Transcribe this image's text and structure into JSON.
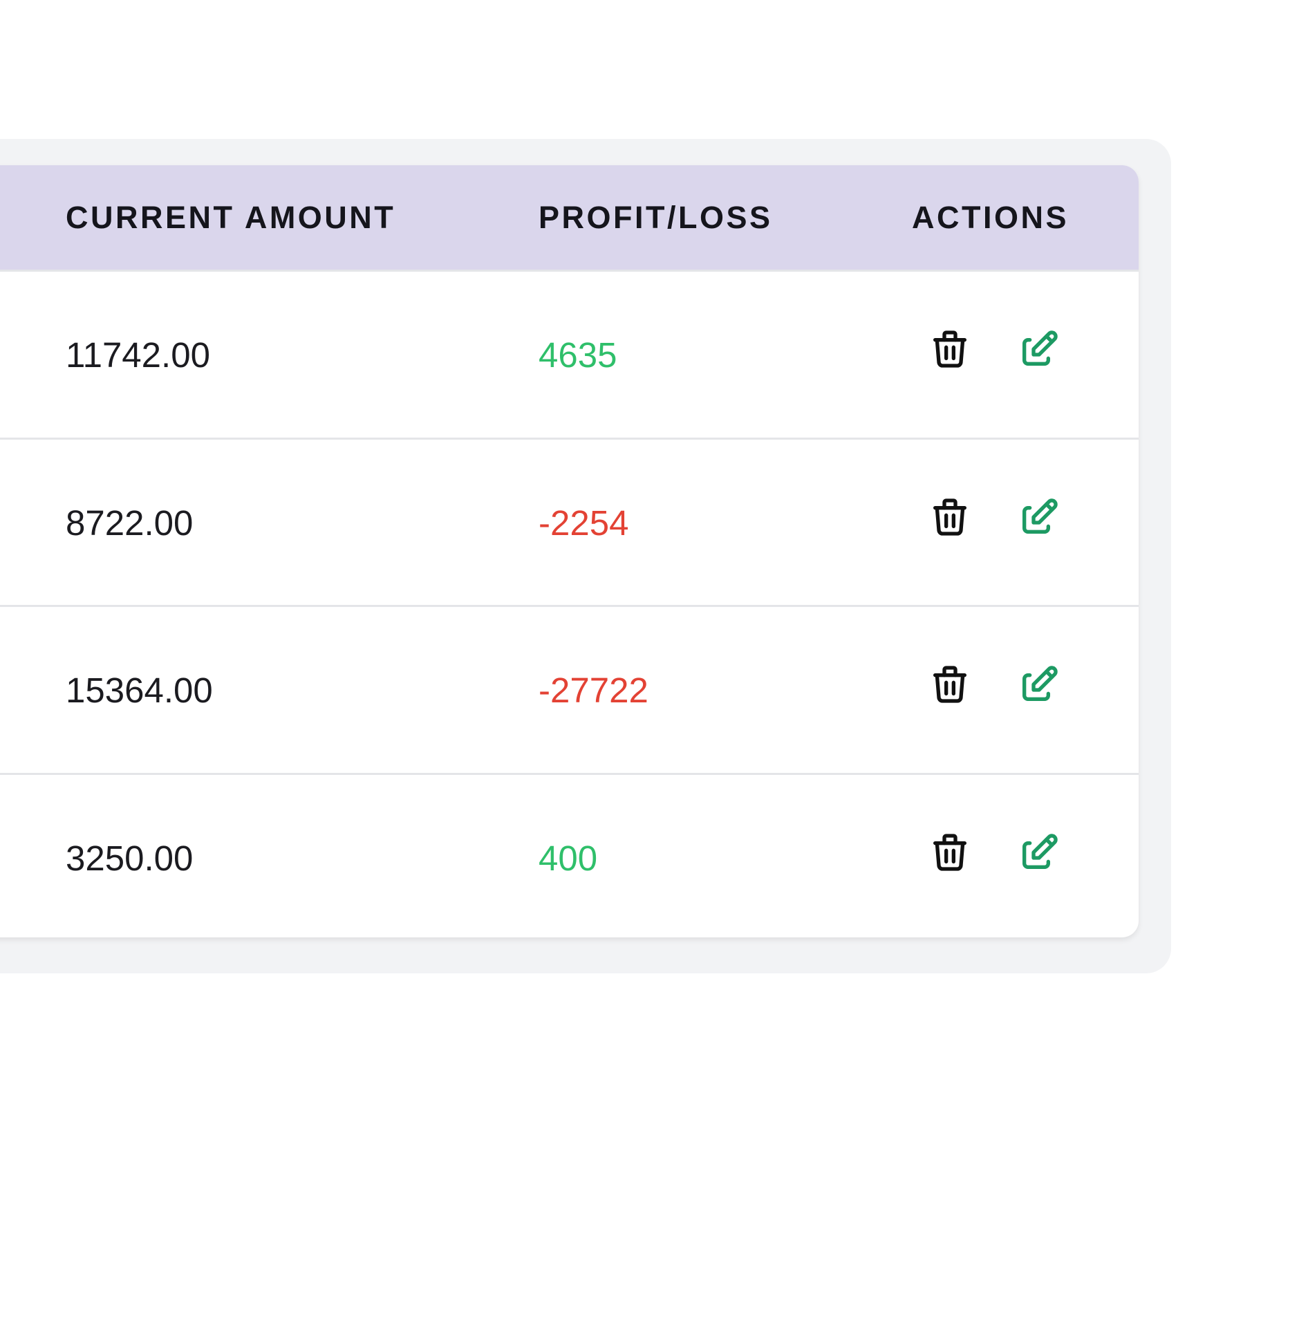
{
  "table": {
    "header": [
      "CURRENT AMOUNT",
      "PROFIT/LOSS",
      "ACTIONS"
    ],
    "rows": [
      [
        "11742.00",
        "4635"
      ],
      [
        "8722.00",
        "-2254"
      ],
      [
        "15364.00",
        "-27722"
      ],
      [
        "3250.00",
        "400"
      ]
    ]
  }
}
